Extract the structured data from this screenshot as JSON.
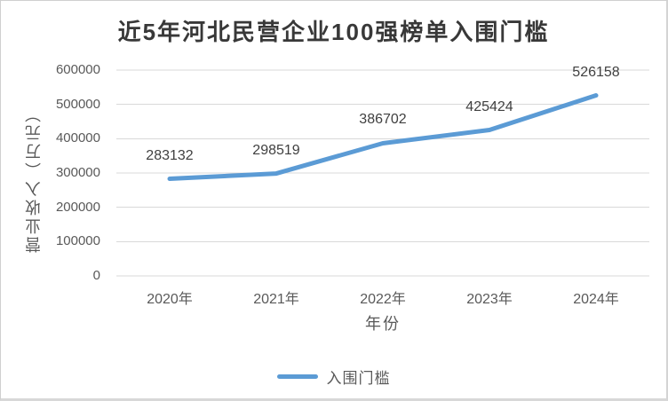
{
  "window": {
    "background": "#ffffff",
    "border_color": "#cfcfcf"
  },
  "chart_data": {
    "type": "line",
    "title": "近5年河北民营企业100强榜单入围门槛",
    "xlabel": "年份",
    "ylabel": "营业收入（万元）",
    "categories": [
      "2020年",
      "2021年",
      "2022年",
      "2023年",
      "2024年"
    ],
    "series": [
      {
        "name": "入围门槛",
        "color": "#5B9BD5",
        "values": [
          283132,
          298519,
          386702,
          425424,
          526158
        ]
      }
    ],
    "data_labels": [
      "283132",
      "298519",
      "386702",
      "425424",
      "526158"
    ],
    "ylim": [
      0,
      600000
    ],
    "yticks": [
      0,
      100000,
      200000,
      300000,
      400000,
      500000,
      600000
    ],
    "ytick_labels": [
      "0",
      "100000",
      "200000",
      "300000",
      "400000",
      "500000",
      "600000"
    ],
    "grid": true,
    "legend_position": "bottom",
    "colors": {
      "line": "#5B9BD5",
      "gridline": "#D9D9D9",
      "title": "#383838",
      "tick": "#595959",
      "data_label": "#404040",
      "axis_title": "#595959"
    }
  }
}
